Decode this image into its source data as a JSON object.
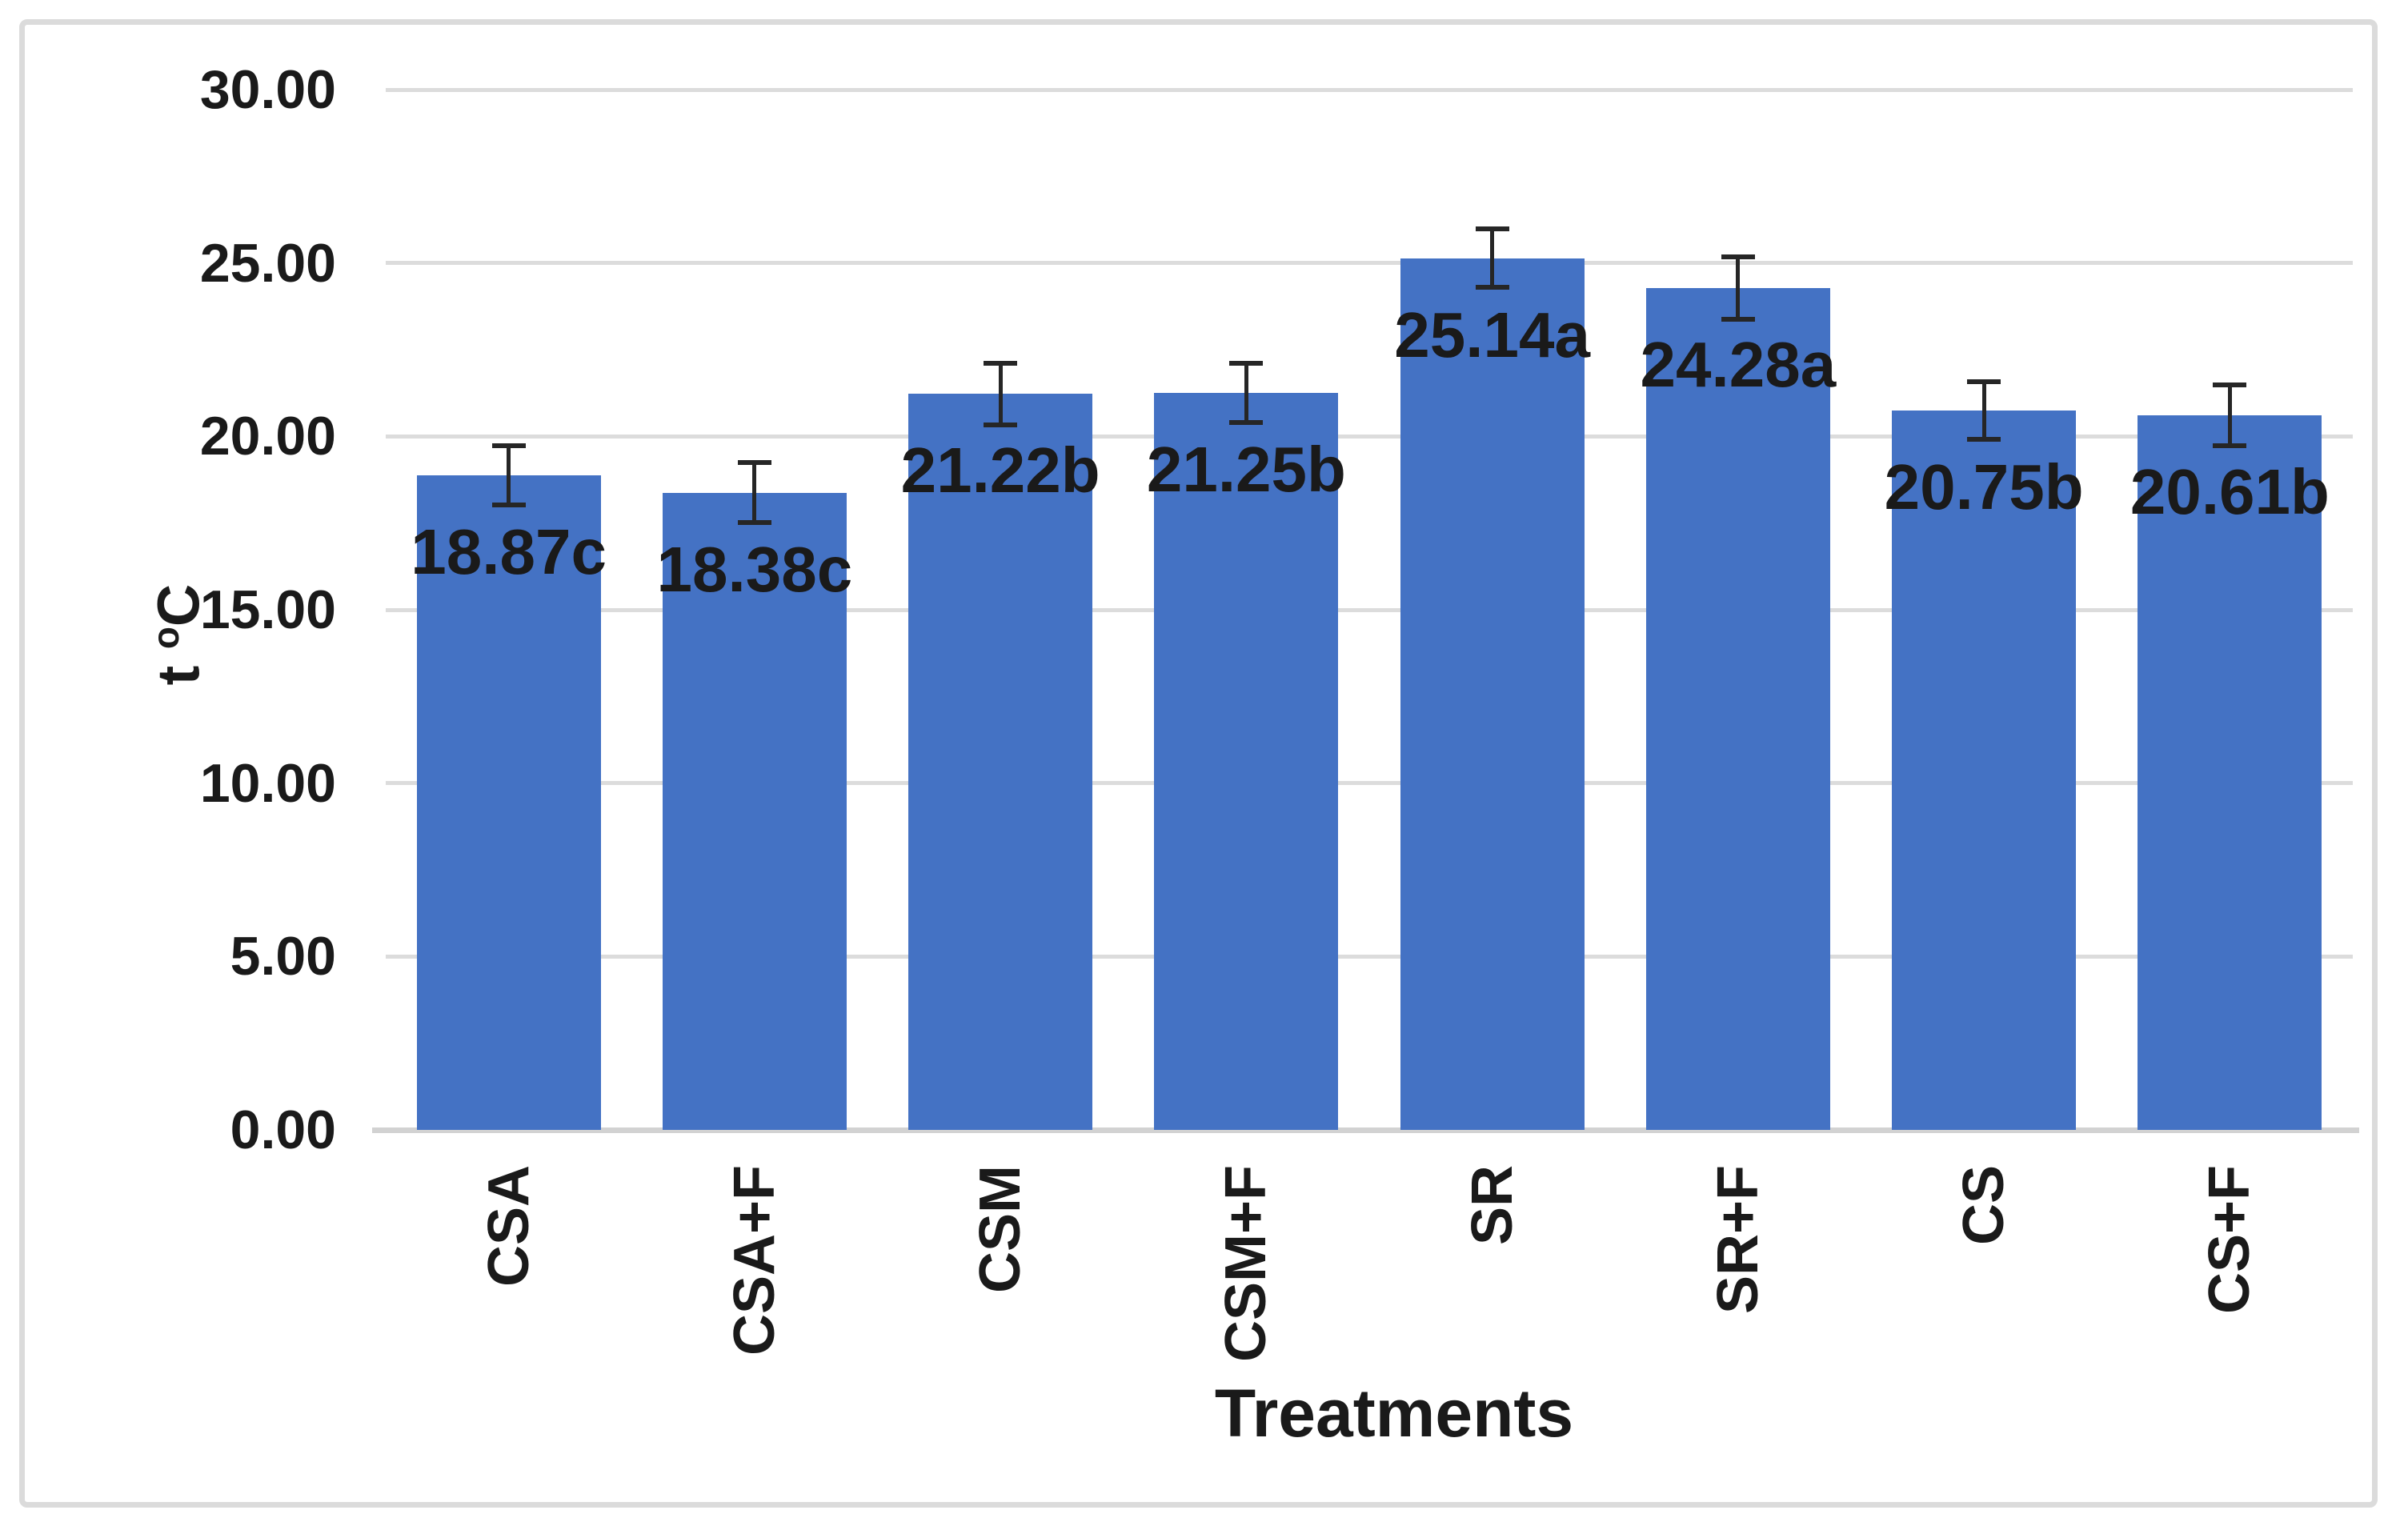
{
  "figure": {
    "background_color": "#ffffff",
    "frame_border_color": "#dbdbdb"
  },
  "axis": {
    "x_title": "Treatments",
    "y_title": {
      "prefix": "t ",
      "sup": "o",
      "suffix": "C"
    }
  },
  "chart_data": {
    "type": "bar",
    "title": "",
    "xlabel": "Treatments",
    "ylabel": "t oC",
    "categories": [
      "CSA",
      "CSA+F",
      "CSM",
      "CSM+F",
      "SR",
      "SR+F",
      "CS",
      "CS+F"
    ],
    "values": [
      18.87,
      18.38,
      21.22,
      21.25,
      25.14,
      24.28,
      20.75,
      20.61
    ],
    "bar_labels": [
      "18.87c",
      "18.38c",
      "21.22b",
      "21.25b",
      "25.14a",
      "24.28a",
      "20.75b",
      "20.61b"
    ],
    "errors": [
      0.85,
      0.86,
      0.88,
      0.86,
      0.85,
      0.9,
      0.83,
      0.88
    ],
    "ylim": [
      0,
      30
    ],
    "ytick_step": 5,
    "ytick_labels": [
      "30.00",
      "25.00",
      "20.00",
      "15.00",
      "10.00",
      "5.00",
      "0.00"
    ],
    "ytick_values": [
      30,
      25,
      20,
      15,
      10,
      5,
      0
    ],
    "bar_color": "#4472c4",
    "gridline_color": "#dcdcdc",
    "error_bar_color": "#262626",
    "grid": true,
    "legend": "none"
  }
}
